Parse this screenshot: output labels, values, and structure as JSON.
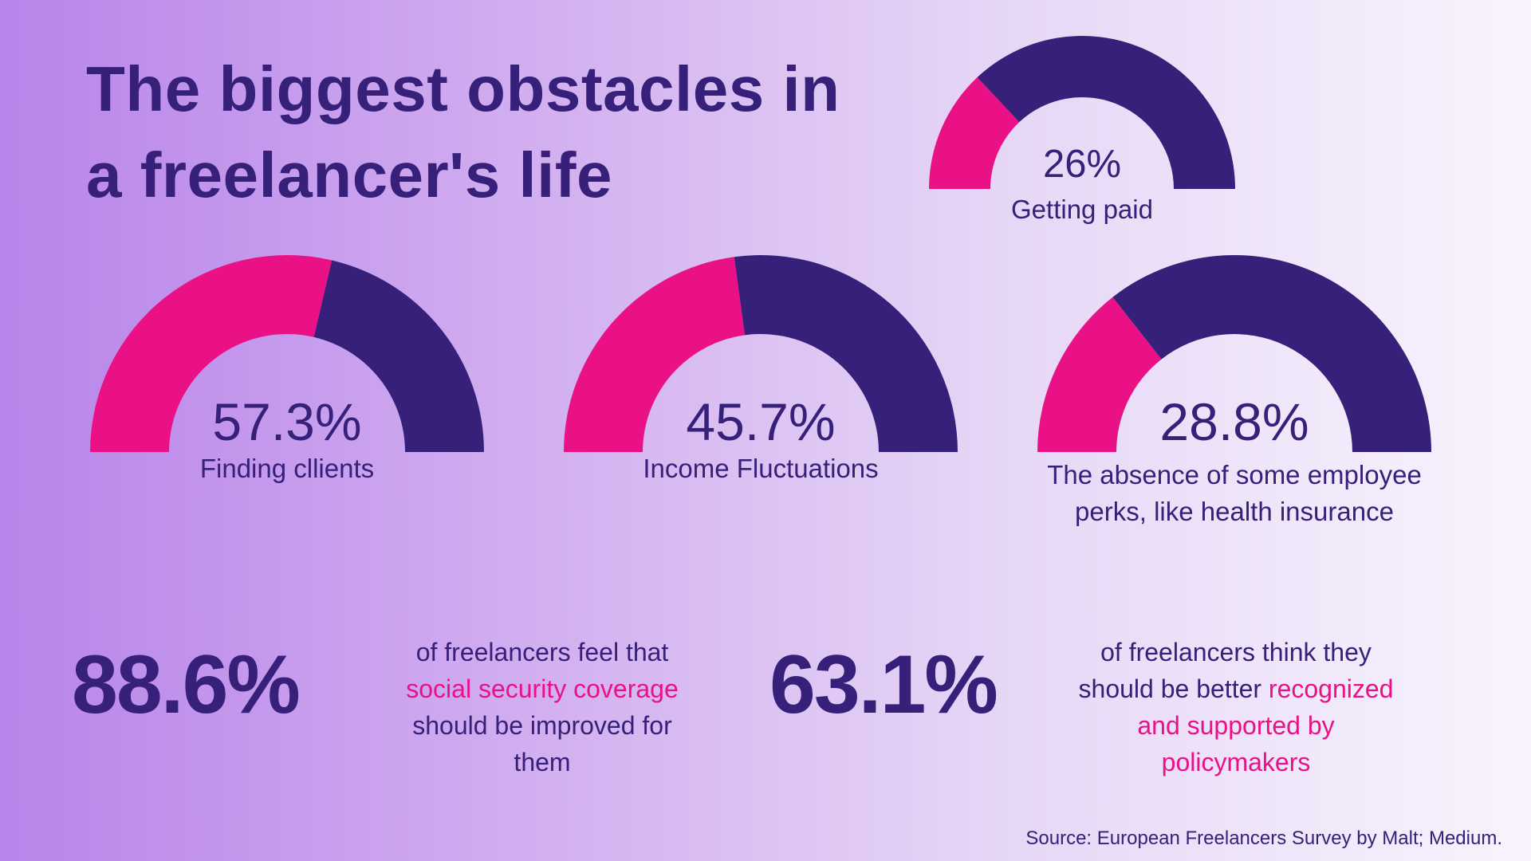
{
  "title": {
    "line1": "The biggest obstacles in",
    "line2": "a freelancer's life"
  },
  "colors": {
    "highlight": "#ea1187",
    "base": "#36207a",
    "text": "#36207a"
  },
  "chart_data": {
    "type": "gauge",
    "title": "The biggest obstacles in a freelancer's life",
    "series": [
      {
        "name": "Getting paid",
        "value": 26,
        "value_label": "26%",
        "max": 100
      },
      {
        "name": "Finding cllients",
        "value": 57.3,
        "value_label": "57.3%",
        "max": 100
      },
      {
        "name": "Income Fluctuations",
        "value": 45.7,
        "value_label": "45.7%",
        "max": 100
      },
      {
        "name": "The absence of some employee perks, like health insurance",
        "value": 28.8,
        "value_label": "28.8%",
        "max": 100
      }
    ]
  },
  "gauges": {
    "getting_paid": {
      "value": "26%",
      "label": "Getting paid"
    },
    "finding_clients": {
      "value": "57.3%",
      "label": "Finding cllients"
    },
    "income": {
      "value": "45.7%",
      "label": "Income Fluctuations"
    },
    "perks": {
      "value": "28.8%",
      "label_line1": "The absence of some employee",
      "label_line2": "perks, like health insurance"
    }
  },
  "stats": {
    "social": {
      "value": "88.6%",
      "pre": "of freelancers feel that",
      "highlight": "social security coverage",
      "post1": "should be improved for",
      "post2": "them"
    },
    "recognition": {
      "value": "63.1%",
      "pre1": "of freelancers think they",
      "pre2": "should be better",
      "highlight1": "recognized",
      "highlight2": "and supported by",
      "highlight3": "policymakers"
    }
  },
  "source": "Source: European Freelancers Survey by Malt; Medium."
}
